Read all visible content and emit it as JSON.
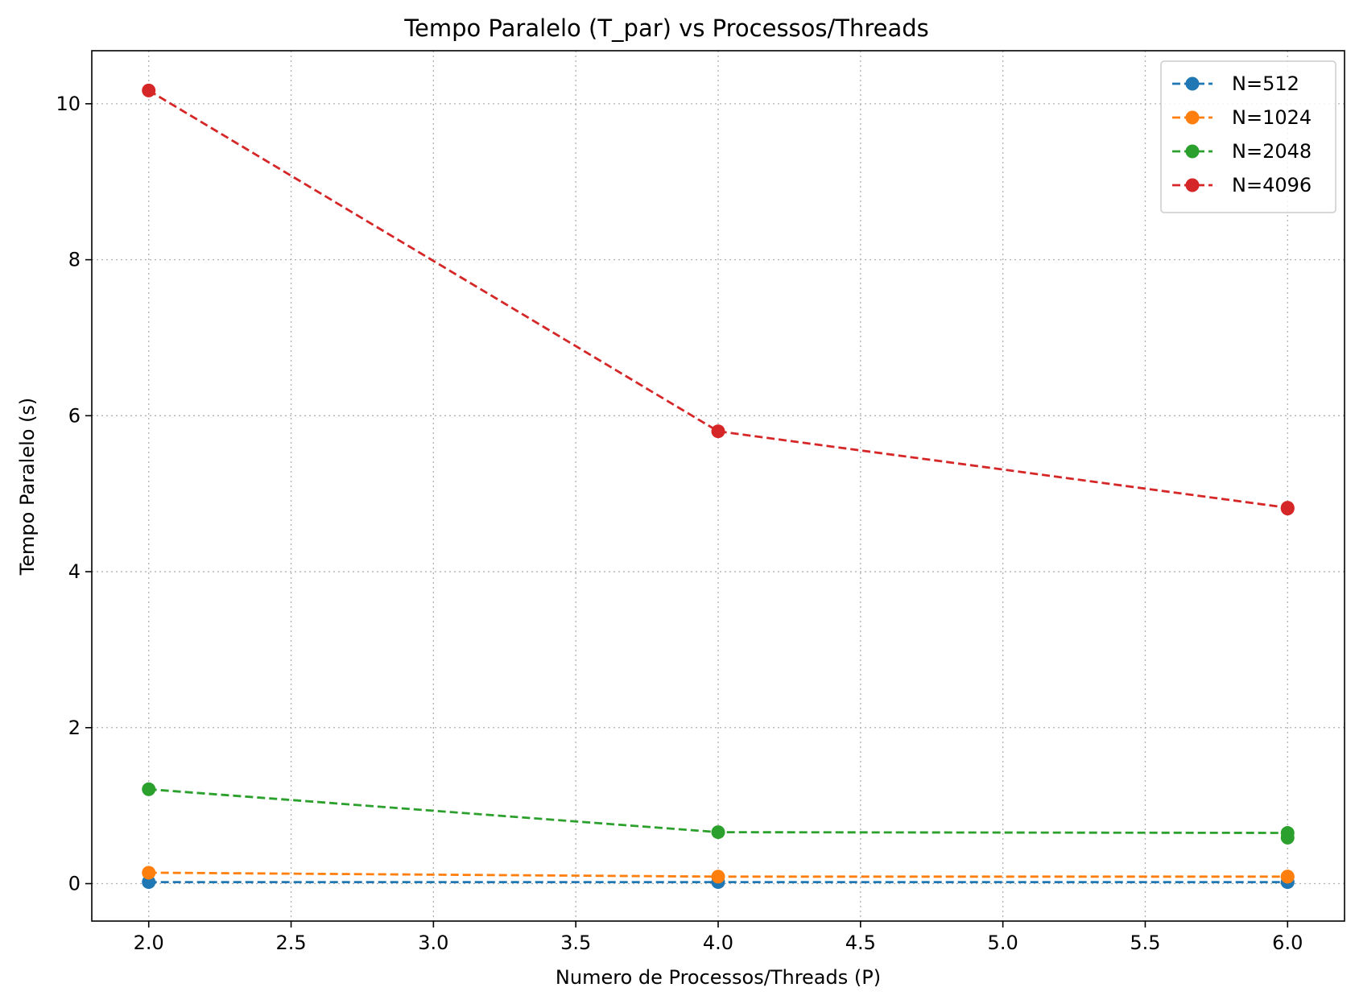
{
  "chart_data": {
    "type": "line",
    "title": "Tempo Paralelo (T_par) vs Processos/Threads",
    "xlabel": "Numero de Processos/Threads (P)",
    "ylabel": "Tempo Paralelo (s)",
    "xlim": [
      1.8,
      6.2
    ],
    "ylim": [
      -0.48,
      10.68
    ],
    "xticks": [
      2.0,
      2.5,
      3.0,
      3.5,
      4.0,
      4.5,
      5.0,
      5.5,
      6.0
    ],
    "xtick_labels": [
      "2.0",
      "2.5",
      "3.0",
      "3.5",
      "4.0",
      "4.5",
      "5.0",
      "5.5",
      "6.0"
    ],
    "yticks": [
      0,
      2,
      4,
      6,
      8,
      10
    ],
    "ytick_labels": [
      "0",
      "2",
      "4",
      "6",
      "8",
      "10"
    ],
    "grid": true,
    "legend_position": "top-right",
    "line_style": "dashed",
    "marker": "circle",
    "series": [
      {
        "name": "N=512",
        "color": "#1f77b4",
        "x": [
          2,
          4,
          6,
          6
        ],
        "y": [
          0.02,
          0.02,
          0.02,
          0.02
        ]
      },
      {
        "name": "N=1024",
        "color": "#ff7f0e",
        "x": [
          2,
          4,
          6,
          6
        ],
        "y": [
          0.14,
          0.09,
          0.09,
          0.09
        ]
      },
      {
        "name": "N=2048",
        "color": "#2ca02c",
        "x": [
          2,
          4,
          6,
          6
        ],
        "y": [
          1.21,
          0.66,
          0.65,
          0.59
        ]
      },
      {
        "name": "N=4096",
        "color": "#d62728",
        "x": [
          2,
          4,
          6,
          6
        ],
        "y": [
          10.17,
          5.8,
          4.82,
          4.81
        ]
      }
    ]
  }
}
